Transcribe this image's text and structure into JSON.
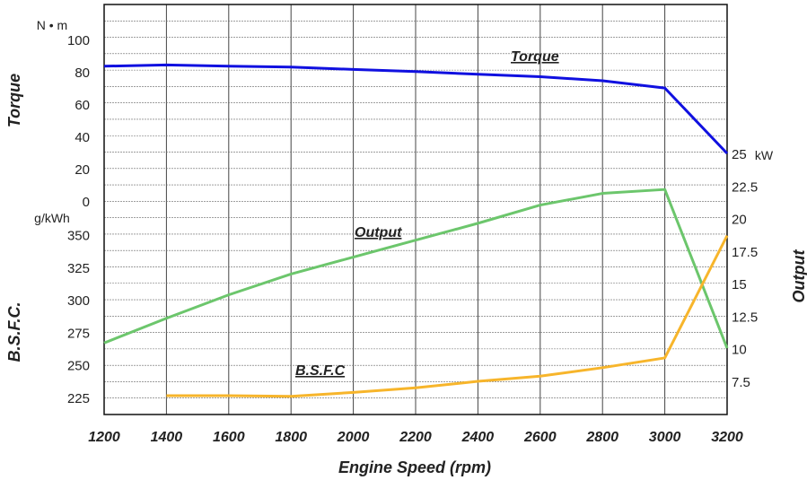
{
  "chart_data": {
    "type": "line",
    "xlabel": "Engine Speed  (rpm)",
    "xlim": [
      1200,
      3200
    ],
    "xticks": [
      1200,
      1400,
      1600,
      1800,
      2000,
      2200,
      2400,
      2600,
      2800,
      3000,
      3200
    ],
    "grid": true,
    "axes": {
      "torque": {
        "label": "Torque",
        "unit": "N • m",
        "range": [
          0,
          100
        ],
        "ticks": [
          0,
          20,
          40,
          60,
          80,
          100
        ]
      },
      "bsfc": {
        "label": "B.S.F.C.",
        "unit": "g/kWh",
        "range": [
          212.5,
          362.5
        ],
        "ticks": [
          225,
          250,
          275,
          300,
          325,
          350
        ]
      },
      "output": {
        "label": "Output",
        "unit": "kW",
        "range": [
          5,
          27.5
        ],
        "ticks": [
          7.5,
          10,
          12.5,
          15,
          17.5,
          20,
          22.5,
          25
        ]
      }
    },
    "series": [
      {
        "name": "Torque",
        "axis": "torque",
        "color": "#1010e0",
        "x": [
          1200,
          1400,
          1600,
          1800,
          2000,
          2200,
          2400,
          2600,
          2800,
          3000,
          3200
        ],
        "y": [
          84,
          84.8,
          84,
          83.5,
          82,
          80.7,
          79,
          77.5,
          75,
          70.5,
          30
        ]
      },
      {
        "name": "Output",
        "axis": "output",
        "color": "#6cc66c",
        "x": [
          1200,
          1400,
          1600,
          1800,
          2000,
          2200,
          2400,
          2600,
          2800,
          3000,
          3200
        ],
        "y": [
          10.5,
          12.4,
          14.2,
          15.8,
          17.1,
          18.4,
          19.7,
          21.1,
          22,
          22.3,
          10.1
        ]
      },
      {
        "name": "B.S.F.C",
        "axis": "bsfc",
        "color": "#f7b52b",
        "x": [
          1400,
          1600,
          1800,
          2000,
          2200,
          2400,
          2600,
          2800,
          3000,
          3200
        ],
        "y": [
          227,
          227,
          226.5,
          229.5,
          233,
          238,
          242,
          248.5,
          256,
          350
        ]
      }
    ]
  }
}
